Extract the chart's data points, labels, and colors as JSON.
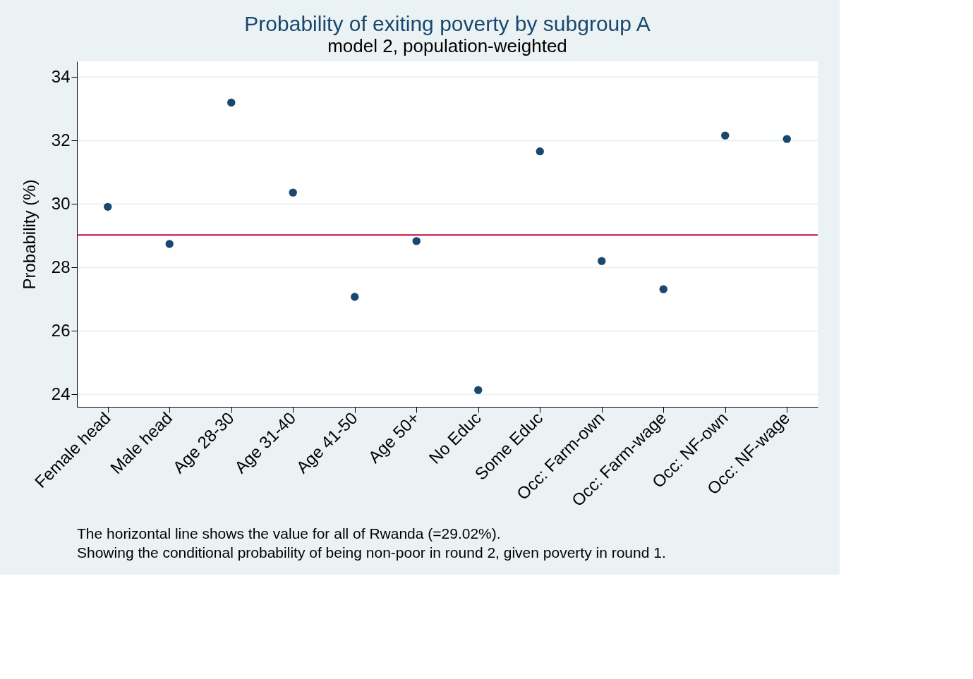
{
  "chart_data": {
    "type": "scatter",
    "title": "Probability of exiting poverty by subgroup A",
    "subtitle": "model 2, population-weighted",
    "ylabel": "Probability (%)",
    "categories": [
      "Female head",
      "Male head",
      "Age 28-30",
      "Age 31-40",
      "Age 41-50",
      "Age 50+",
      "No Educ",
      "Some Educ",
      "Occ: Farm-own",
      "Occ: Farm-wage",
      "Occ: NF-own",
      "Occ: NF-wage"
    ],
    "series": [
      {
        "color": "#1a476f",
        "values": [
          29.91,
          28.74,
          33.2,
          30.36,
          27.07,
          28.83,
          24.13,
          31.66,
          28.2,
          27.31,
          32.16,
          32.05
        ]
      }
    ],
    "ylim": [
      23.6,
      34.5
    ],
    "yticks": [
      24,
      26,
      28,
      30,
      32,
      34
    ],
    "grid": "y",
    "marker": "circle",
    "ref_lines": [
      {
        "axis": "y",
        "value": 29.02,
        "color": "#c10534"
      }
    ],
    "annotations": [
      "The horizontal line shows the value for all of Rwanda (=29.02%).",
      "Showing the conditional probability of being non-poor in round 2, given poverty in round 1."
    ]
  }
}
